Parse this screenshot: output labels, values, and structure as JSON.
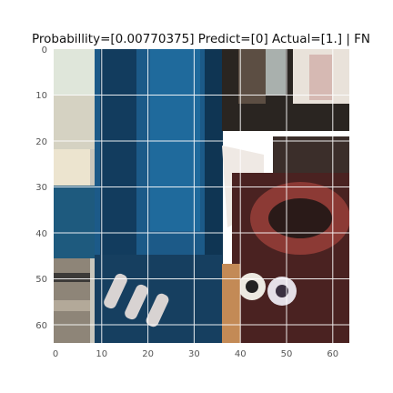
{
  "title": "Probabillity=[0.00770375] Predict=[0] Actual=[1.] | FN",
  "axes": {
    "x_ticks": [
      "0",
      "10",
      "20",
      "30",
      "40",
      "50",
      "60"
    ],
    "y_ticks": [
      "0",
      "10",
      "20",
      "30",
      "40",
      "50",
      "60"
    ],
    "x_range": [
      0,
      64
    ],
    "y_range": [
      0,
      64
    ],
    "grid": true,
    "grid_color": "#ffffff"
  },
  "image": {
    "description_icon": "pixelated-photo-icon",
    "dominant_colors": [
      "#1b5f8c",
      "#0d2a45",
      "#7a1f1f",
      "#efe6d6",
      "#2b2b2b"
    ]
  }
}
